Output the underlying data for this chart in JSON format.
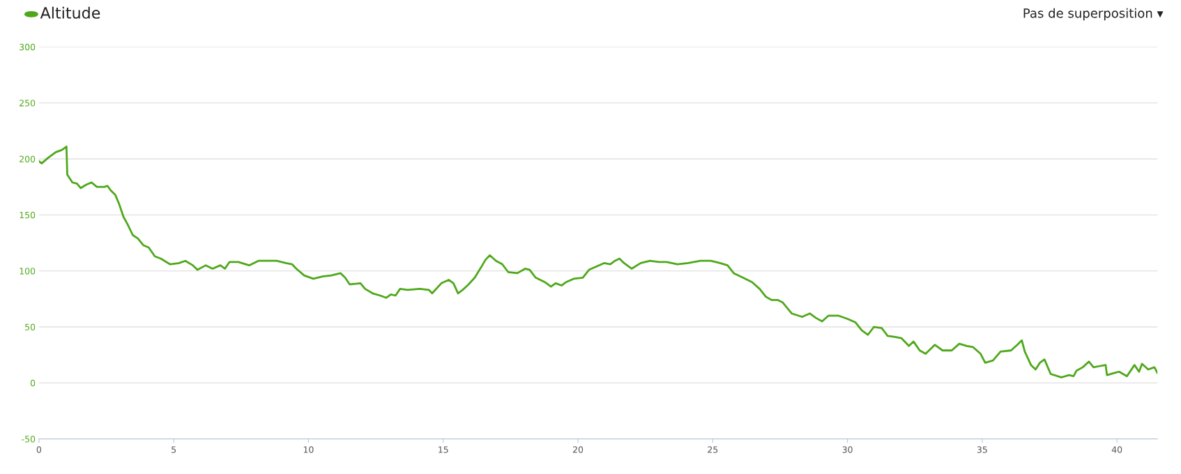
{
  "chart_data": {
    "type": "line",
    "title": "Altitude",
    "annotations": [
      "Pas de superposition ▾"
    ],
    "xlim": [
      0,
      41.5
    ],
    "xticks": [
      0,
      5,
      10,
      15,
      20,
      25,
      30,
      35,
      40
    ],
    "ylim": [
      -50,
      300
    ],
    "yticks": [
      -50,
      0,
      50,
      100,
      150,
      200,
      250,
      300
    ],
    "grid": "y",
    "legend": false,
    "marker": "none",
    "line_style": "solid",
    "series": [
      {
        "color": "#4ea81a",
        "x": [
          0,
          0.1,
          0.34,
          0.62,
          0.85,
          1.02,
          1.05,
          1.24,
          1.41,
          1.55,
          1.75,
          1.95,
          2.15,
          2.43,
          2.54,
          2.66,
          2.83,
          2.97,
          3.14,
          3.28,
          3.48,
          3.67,
          3.87,
          4.07,
          4.3,
          4.52,
          4.86,
          5.2,
          5.43,
          5.71,
          5.88,
          6.19,
          6.44,
          6.73,
          6.9,
          7.07,
          7.4,
          7.8,
          8.14,
          8.48,
          8.82,
          9.16,
          9.39,
          9.55,
          9.84,
          10.18,
          10.52,
          10.85,
          11.19,
          11.36,
          11.53,
          11.93,
          12.1,
          12.38,
          12.66,
          12.89,
          13.06,
          13.23,
          13.4,
          13.68,
          14.13,
          14.47,
          14.59,
          14.93,
          15.21,
          15.38,
          15.55,
          15.72,
          15.94,
          16.17,
          16.4,
          16.57,
          16.73,
          16.96,
          17.19,
          17.41,
          17.75,
          18.04,
          18.21,
          18.43,
          18.77,
          19.0,
          19.17,
          19.39,
          19.56,
          19.84,
          20.18,
          20.41,
          20.69,
          20.97,
          21.2,
          21.37,
          21.54,
          21.71,
          21.99,
          22.33,
          22.67,
          23.01,
          23.29,
          23.69,
          24.09,
          24.54,
          24.93,
          25.27,
          25.55,
          25.78,
          26.12,
          26.46,
          26.74,
          26.97,
          27.19,
          27.42,
          27.59,
          27.93,
          28.32,
          28.6,
          28.83,
          29.06,
          29.29,
          29.68,
          30.02,
          30.3,
          30.53,
          30.76,
          30.98,
          31.27,
          31.49,
          31.77,
          32.0,
          32.28,
          32.45,
          32.68,
          32.9,
          33.24,
          33.53,
          33.87,
          34.15,
          34.43,
          34.66,
          34.94,
          35.11,
          35.4,
          35.68,
          36.07,
          36.3,
          36.47,
          36.58,
          36.81,
          36.98,
          37.14,
          37.31,
          37.54,
          37.94,
          38.22,
          38.39,
          38.5,
          38.73,
          38.96,
          39.13,
          39.35,
          39.58,
          39.63,
          39.92,
          40.08,
          40.37,
          40.65,
          40.82,
          40.93,
          41.16,
          41.39,
          41.5
        ],
        "values": [
          198,
          196,
          201,
          206,
          208,
          211,
          186,
          179,
          178,
          174,
          177,
          179,
          175,
          175,
          176,
          172,
          168,
          160,
          148,
          142,
          132,
          129,
          123,
          121,
          113,
          111,
          106,
          107,
          109,
          105,
          101,
          105,
          102,
          105,
          102,
          108,
          108,
          105,
          109,
          109,
          109,
          107,
          106,
          102,
          96,
          93,
          95,
          96,
          98,
          94,
          88,
          89,
          84,
          80,
          78,
          76,
          79,
          78,
          84,
          83,
          84,
          83,
          80,
          89,
          92,
          89,
          80,
          83,
          88,
          94,
          103,
          110,
          114,
          109,
          106,
          99,
          98,
          102,
          101,
          94,
          90,
          86,
          89,
          87,
          90,
          93,
          94,
          101,
          104,
          107,
          106,
          109,
          111,
          107,
          102,
          107,
          109,
          108,
          108,
          106,
          107,
          109,
          109,
          107,
          105,
          98,
          94,
          90,
          84,
          77,
          74,
          74,
          72,
          62,
          59,
          62,
          58,
          55,
          60,
          60,
          57,
          54,
          47,
          43,
          50,
          49,
          42,
          41,
          40,
          33,
          37,
          29,
          26,
          34,
          29,
          29,
          35,
          33,
          32,
          26,
          18,
          20,
          28,
          29,
          34,
          38,
          28,
          16,
          12,
          18,
          21,
          8,
          5,
          7,
          6,
          11,
          14,
          19,
          14,
          15,
          16,
          7,
          9,
          10,
          6,
          16,
          10,
          17,
          12,
          14,
          9
        ]
      }
    ]
  }
}
